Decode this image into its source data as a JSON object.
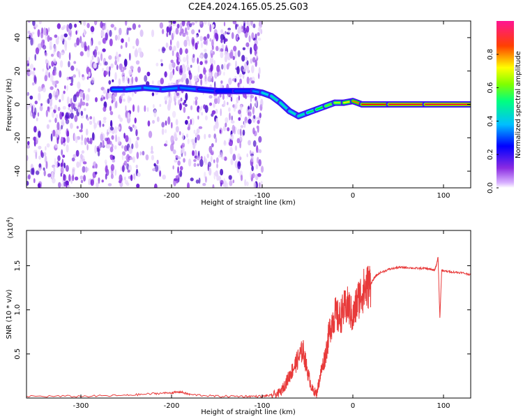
{
  "title": "C2E4.2024.165.05.25.G03",
  "chart_data": [
    {
      "type": "heatmap",
      "xlabel": "Height of straight line (km)",
      "ylabel": "Frequency (Hz)",
      "xlim": [
        -360,
        130
      ],
      "ylim": [
        -50,
        50
      ],
      "xticks": [
        -300,
        -200,
        -100,
        0,
        100
      ],
      "yticks": [
        -40,
        -20,
        0,
        20,
        40
      ],
      "colorbar": {
        "label": "Normalized spectral amplitude",
        "range": [
          0.0,
          1.0
        ],
        "ticks": [
          0.0,
          0.2,
          0.4,
          0.6,
          0.8
        ],
        "colormap": [
          "#ffffff",
          "#8a2be2",
          "#0000ff",
          "#00e5ff",
          "#00ff00",
          "#ffff00",
          "#ff0000",
          "#ff1493"
        ]
      },
      "signal_track": {
        "x": [
          -265,
          -250,
          -230,
          -210,
          -190,
          -170,
          -150,
          -130,
          -110,
          -100,
          -90,
          -80,
          -70,
          -60,
          -50,
          -40,
          -30,
          -20,
          -10,
          0,
          10,
          40,
          80,
          130
        ],
        "freq": [
          9,
          9,
          10,
          9,
          10,
          9,
          8,
          8,
          8,
          7,
          5,
          1,
          -4,
          -7,
          -5,
          -3,
          -1,
          1,
          1,
          2,
          0,
          0,
          0,
          0
        ],
        "amplitude": [
          0.35,
          0.38,
          0.4,
          0.38,
          0.37,
          0.36,
          0.3,
          0.3,
          0.35,
          0.4,
          0.5,
          0.45,
          0.48,
          0.45,
          0.5,
          0.55,
          0.6,
          0.65,
          0.7,
          0.75,
          0.85,
          0.88,
          0.9,
          0.9
        ]
      },
      "noise_region_xlim": [
        -360,
        -100
      ]
    },
    {
      "type": "line",
      "xlabel": "Height of straight line (km)",
      "ylabel": "SNR (10 * v/v)",
      "y_multiplier": "(x10",
      "y_multiplier_exp": "4",
      "y_multiplier_close": ")",
      "xlim": [
        -360,
        130
      ],
      "ylim": [
        0,
        1.9
      ],
      "xticks": [
        -300,
        -200,
        -100,
        0,
        100
      ],
      "yticks": [
        0.5,
        1.0,
        1.5
      ],
      "ytick_labels": [
        "0.5",
        "1.0",
        "1.5"
      ],
      "color": "#e83a3a",
      "series": [
        {
          "x": [
            -360,
            -300,
            -250,
            -220,
            -200,
            -190,
            -180,
            -150,
            -120,
            -100,
            -90,
            -80,
            -75,
            -70,
            -65,
            -60,
            -55,
            -50,
            -45,
            -40,
            -35,
            -30,
            -25,
            -20,
            -15,
            -10,
            -5,
            0,
            5,
            10,
            15,
            20,
            25,
            30,
            40,
            50,
            60,
            70,
            80,
            85,
            90,
            92,
            94,
            96,
            98,
            100,
            110,
            120,
            130
          ],
          "y": [
            0.02,
            0.02,
            0.03,
            0.05,
            0.06,
            0.07,
            0.04,
            0.02,
            0.02,
            0.02,
            0.03,
            0.06,
            0.15,
            0.25,
            0.35,
            0.45,
            0.55,
            0.3,
            0.1,
            0.05,
            0.3,
            0.5,
            0.8,
            0.95,
            0.9,
            1.0,
            1.05,
            0.9,
            1.1,
            1.2,
            1.25,
            1.3,
            1.38,
            1.42,
            1.46,
            1.48,
            1.48,
            1.47,
            1.47,
            1.46,
            1.45,
            1.5,
            1.6,
            0.9,
            1.45,
            1.44,
            1.43,
            1.42,
            1.4
          ]
        }
      ]
    }
  ]
}
